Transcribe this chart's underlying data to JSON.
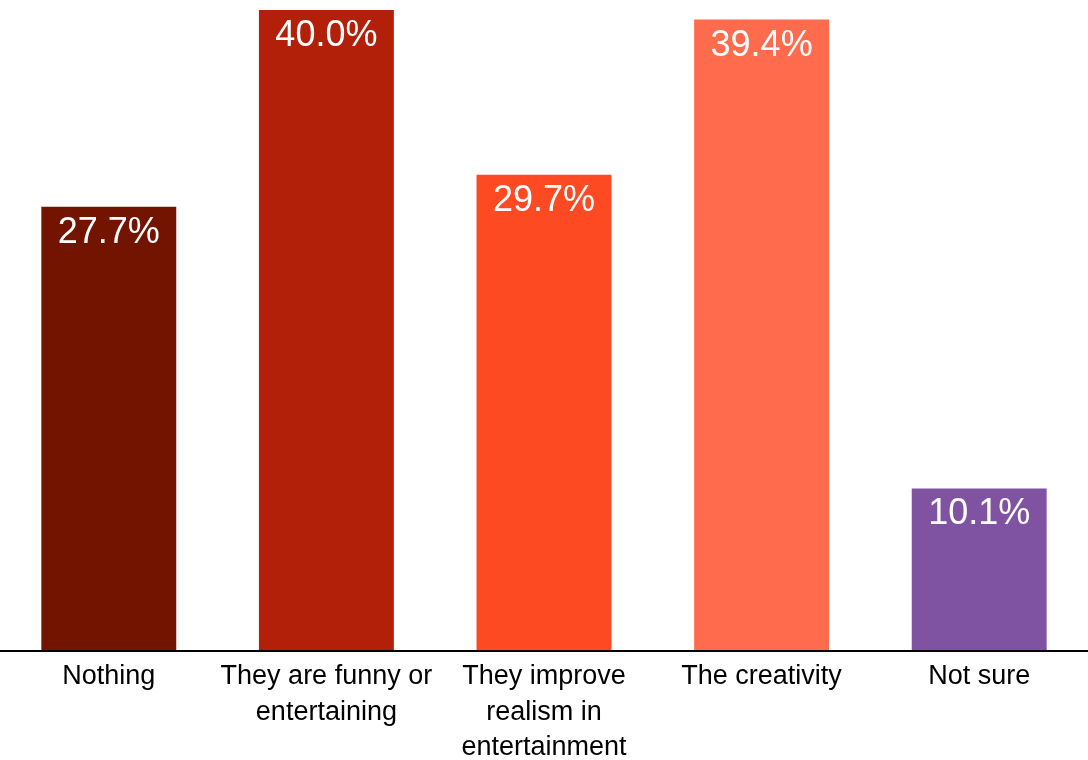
{
  "chart_data": {
    "type": "bar",
    "categories": [
      "Nothing",
      "They are funny or entertaining",
      "They improve realism in entertainment",
      "The creativity",
      "Not sure"
    ],
    "values": [
      27.7,
      40.0,
      29.7,
      39.4,
      10.1
    ],
    "value_labels": [
      "27.7%",
      "40.0%",
      "29.7%",
      "39.4%",
      "10.1%"
    ],
    "colors": [
      "#731400",
      "#b32009",
      "#fd4a22",
      "#ff6c4d",
      "#7f53a1"
    ]
  }
}
